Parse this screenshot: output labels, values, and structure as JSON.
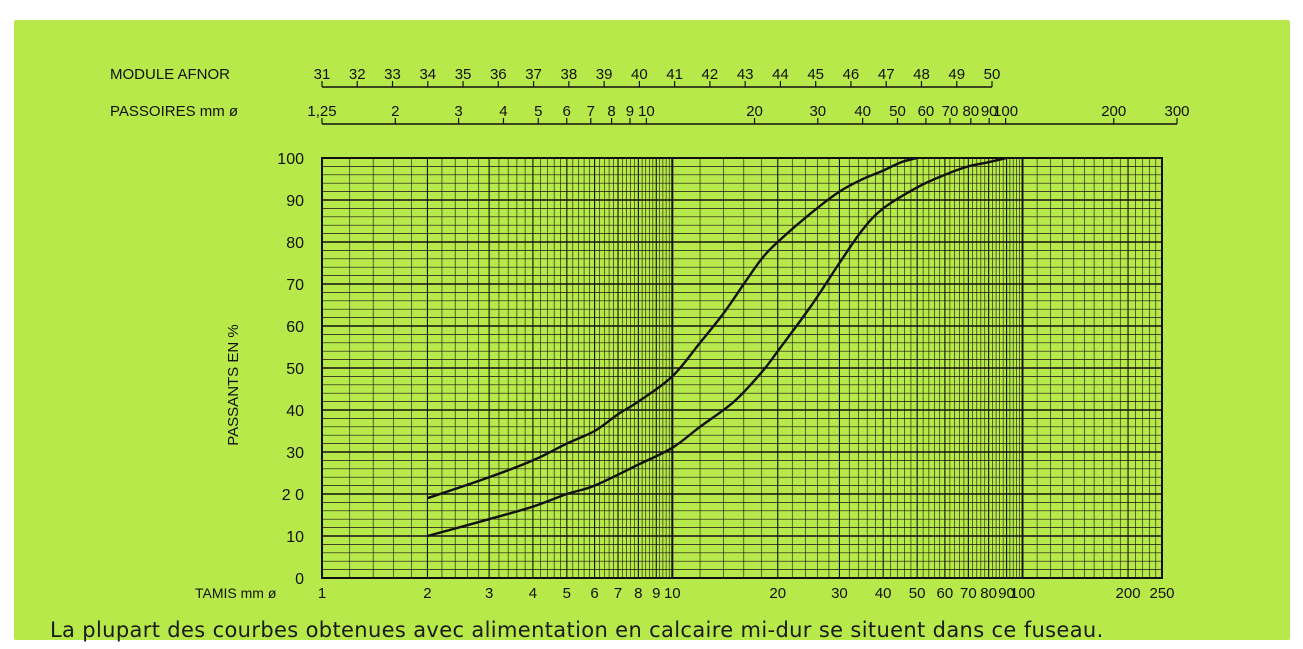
{
  "header": {
    "module_label": "MODULE AFNOR",
    "passoires_label": "PASSOIRES mm ø"
  },
  "caption": "La plupart des courbes obtenues avec alimentation en calcaire mi-dur se situent dans ce fuseau.",
  "chart_data": {
    "type": "line",
    "title": "",
    "xlabel": "TAMIS mm ø",
    "ylabel": "PASSANTS EN %",
    "xscale": "log",
    "xlim": [
      1,
      250
    ],
    "ylim": [
      0,
      100
    ],
    "grid": true,
    "x_ticks": [
      "1",
      "2",
      "3",
      "4",
      "5",
      "6",
      "7",
      "8",
      "9",
      "10",
      "20",
      "30",
      "40",
      "50",
      "60",
      "70",
      "80",
      "90",
      "100",
      "200",
      "250"
    ],
    "y_ticks": [
      "0",
      "10",
      "2 0",
      "30",
      "40",
      "50",
      "60",
      "70",
      "80",
      "90",
      "100"
    ],
    "passoires_ticks": [
      "1,25",
      "2",
      "3",
      "4",
      "5",
      "6",
      "7",
      "8",
      "9",
      "10",
      "20",
      "30",
      "40",
      "50",
      "60",
      "70",
      "80",
      "90",
      "100",
      "200",
      "300"
    ],
    "module_afnor_ticks": [
      "31",
      "32",
      "33",
      "34",
      "35",
      "36",
      "37",
      "38",
      "39",
      "40",
      "41",
      "42",
      "43",
      "44",
      "45",
      "46",
      "47",
      "48",
      "49",
      "50"
    ],
    "series": [
      {
        "name": "",
        "x": [
          2,
          3,
          4,
          5,
          6,
          7,
          8,
          10,
          12,
          14,
          16,
          18,
          20,
          25,
          30,
          35,
          40,
          45,
          50
        ],
        "y": [
          19,
          24,
          28,
          32,
          35,
          39,
          42,
          48,
          56,
          63,
          70,
          76,
          80,
          87,
          92,
          95,
          97,
          99,
          100
        ]
      },
      {
        "name": "",
        "x": [
          2,
          3,
          4,
          5,
          6,
          8,
          10,
          12,
          15,
          18,
          20,
          25,
          30,
          35,
          40,
          50,
          60,
          70,
          80,
          90
        ],
        "y": [
          10,
          14,
          17,
          20,
          22,
          27,
          31,
          36,
          42,
          49,
          54,
          65,
          75,
          83,
          88,
          93,
          96,
          98,
          99,
          100
        ]
      }
    ]
  }
}
